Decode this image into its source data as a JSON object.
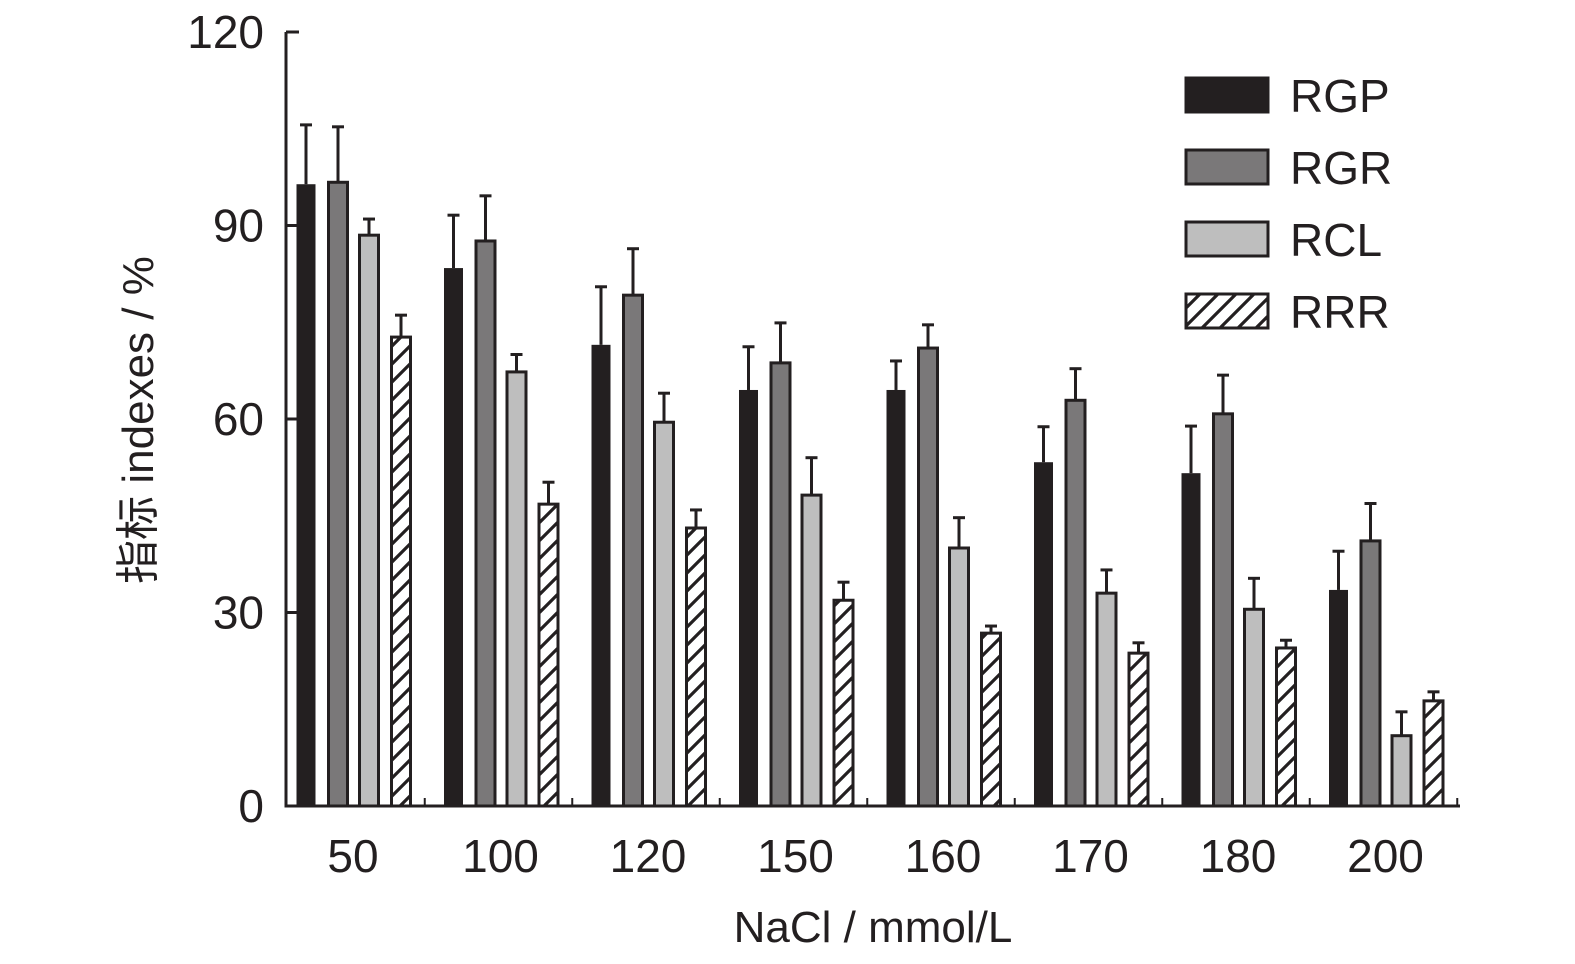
{
  "chart_data": {
    "type": "bar",
    "title": "",
    "xlabel": "NaCl / mmol/L",
    "ylabel": "指标 indexes / %",
    "ylim": [
      0,
      120
    ],
    "yticks": [
      0,
      30,
      60,
      90,
      120
    ],
    "ytick_labels": [
      "0",
      "30",
      "60",
      "90",
      "120"
    ],
    "grid": false,
    "legend_position": "top-right",
    "categories": [
      "50",
      "100",
      "120",
      "150",
      "160",
      "170",
      "180",
      "200"
    ],
    "series": [
      {
        "name": "RGP",
        "fill": "#231f20",
        "pattern": "solid",
        "values": [
          96.4,
          83.4,
          71.5,
          64.5,
          64.5,
          53.3,
          51.6,
          33.5
        ],
        "error": [
          9.2,
          8.2,
          9.0,
          6.7,
          4.5,
          5.5,
          7.3,
          6.0
        ]
      },
      {
        "name": "RGR",
        "fill": "#7a7879",
        "pattern": "solid",
        "values": [
          96.7,
          87.6,
          79.2,
          68.7,
          71.0,
          62.9,
          60.8,
          41.1
        ],
        "error": [
          8.6,
          7.0,
          7.2,
          6.2,
          3.6,
          4.9,
          6.0,
          5.8
        ]
      },
      {
        "name": "RCL",
        "fill": "#bebebe",
        "pattern": "solid",
        "values": [
          88.5,
          67.3,
          59.5,
          48.2,
          40.0,
          33.0,
          30.5,
          10.9
        ],
        "error": [
          2.5,
          2.7,
          4.5,
          5.8,
          4.7,
          3.6,
          4.8,
          3.7
        ]
      },
      {
        "name": "RRR",
        "fill": "#ffffff",
        "pattern": "hatch",
        "values": [
          72.7,
          46.8,
          43.1,
          31.9,
          26.8,
          23.7,
          24.5,
          16.3
        ],
        "error": [
          3.4,
          3.4,
          2.8,
          2.8,
          1.1,
          1.6,
          1.2,
          1.4
        ]
      }
    ]
  }
}
